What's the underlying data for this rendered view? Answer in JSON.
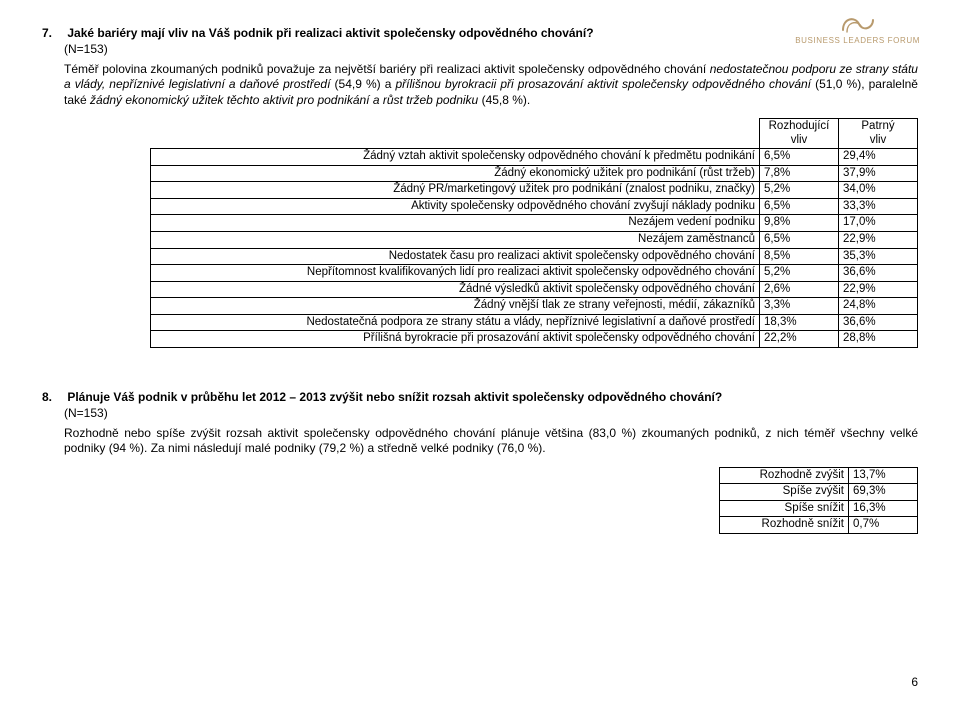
{
  "logo": {
    "text": "BUSINESS LEADERS FORUM"
  },
  "q7": {
    "number": "7.",
    "title": "Jaké bariéry mají vliv na Váš podnik při realizaci aktivit společensky odpovědného chování?",
    "sample": "(N=153)",
    "para_pre": "Téměř polovina zkoumaných podniků považuje za největší bariéry při realizaci aktivit společensky odpovědného chování ",
    "para_em1": "nedostatečnou podporu ze strany státu a vlády, nepříznivé legislativní a daňové prostředí",
    "para_mid1": " (54,9 %) a ",
    "para_em2": "přílišnou byrokracii při prosazování aktivit společensky odpovědného chování",
    "para_mid2": " (51,0 %), paralelně také ",
    "para_em3": "žádný ekonomický užitek těchto aktivit pro podnikání a růst tržeb podniku",
    "para_post": " (45,8 %).",
    "table": {
      "headers": {
        "c1": "Rozhodující vliv",
        "c2": "Patrný vliv"
      },
      "rows": [
        {
          "label": "Žádný vztah aktivit společensky odpovědného chování k předmětu podnikání",
          "v1": "6,5%",
          "v2": "29,4%"
        },
        {
          "label": "Žádný ekonomický užitek pro podnikání (růst tržeb)",
          "v1": "7,8%",
          "v2": "37,9%"
        },
        {
          "label": "Žádný PR/marketingový užitek pro podnikání (znalost podniku, značky)",
          "v1": "5,2%",
          "v2": "34,0%"
        },
        {
          "label": "Aktivity společensky odpovědného chování zvyšují náklady podniku",
          "v1": "6,5%",
          "v2": "33,3%"
        },
        {
          "label": "Nezájem vedení podniku",
          "v1": "9,8%",
          "v2": "17,0%"
        },
        {
          "label": "Nezájem zaměstnanců",
          "v1": "6,5%",
          "v2": "22,9%"
        },
        {
          "label": "Nedostatek času pro realizaci aktivit společensky odpovědného chování",
          "v1": "8,5%",
          "v2": "35,3%"
        },
        {
          "label": "Nepřítomnost kvalifikovaných lidí pro realizaci aktivit společensky odpovědného chování",
          "v1": "5,2%",
          "v2": "36,6%"
        },
        {
          "label": "Žádné výsledků aktivit společensky odpovědného chování",
          "v1": "2,6%",
          "v2": "22,9%"
        },
        {
          "label": "Žádný vnější tlak ze strany veřejnosti, médií, zákazníků",
          "v1": "3,3%",
          "v2": "24,8%"
        },
        {
          "label": "Nedostatečná podpora ze strany státu a vlády, nepříznivé legislativní a daňové prostředí",
          "v1": "18,3%",
          "v2": "36,6%"
        },
        {
          "label": "Přílišná byrokracie při prosazování aktivit společensky odpovědného chování",
          "v1": "22,2%",
          "v2": "28,8%"
        }
      ]
    }
  },
  "q8": {
    "number": "8.",
    "title": "Plánuje Váš podnik v průběhu let 2012 – 2013 zvýšit nebo snížit rozsah aktivit společensky odpovědného chování?",
    "sample": "(N=153)",
    "para": "Rozhodně nebo spíše zvýšit rozsah aktivit společensky odpovědného chování plánuje většina (83,0 %) zkoumaných podniků, z nich téměř všechny velké podniky (94 %). Za nimi následují malé podniky (79,2 %) a středně velké podniky (76,0 %).",
    "table": {
      "rows": [
        {
          "label": "Rozhodně zvýšit",
          "v": "13,7%"
        },
        {
          "label": "Spíše zvýšit",
          "v": "69,3%"
        },
        {
          "label": "Spíše snížit",
          "v": "16,3%"
        },
        {
          "label": "Rozhodně snížit",
          "v": "0,7%"
        }
      ]
    }
  },
  "page_number": "6"
}
